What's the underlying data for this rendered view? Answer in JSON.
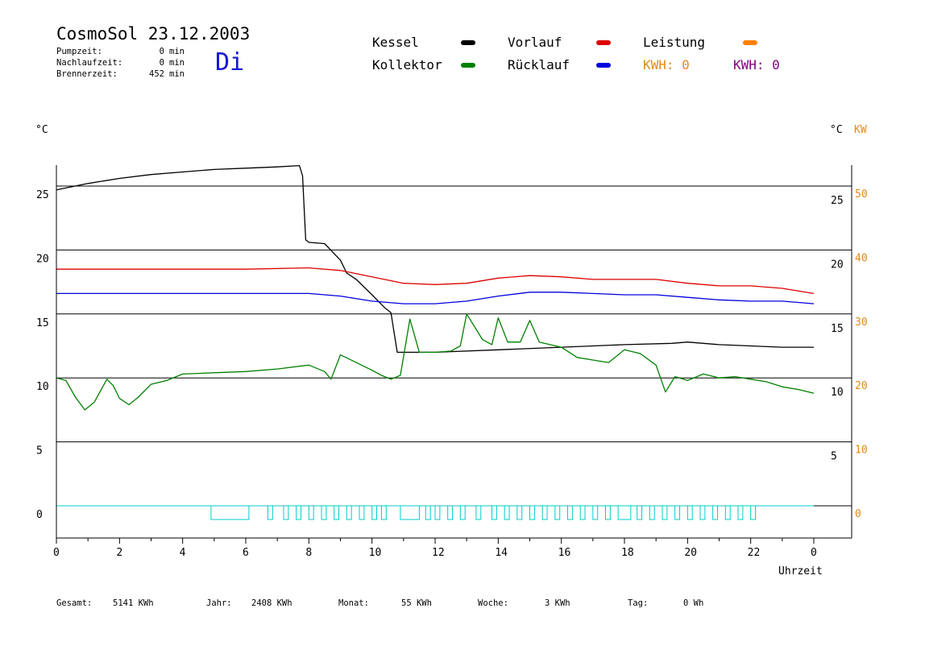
{
  "header": {
    "title": "CosmoSol 23.12.2003",
    "day": "Di",
    "stats": [
      {
        "label": "Pumpzeit:",
        "value": "0",
        "unit": "min"
      },
      {
        "label": "Nachlaufzeit:",
        "value": "0",
        "unit": "min"
      },
      {
        "label": "Brennerzeit:",
        "value": "452",
        "unit": "min"
      }
    ]
  },
  "legend": {
    "kessel": {
      "label": "Kessel",
      "color": "#000000"
    },
    "kollektor": {
      "label": "Kollektor",
      "color": "#008000"
    },
    "vorlauf": {
      "label": "Vorlauf",
      "color": "#dd0000"
    },
    "ruecklauf": {
      "label": "Rücklauf",
      "color": "#0000dd"
    },
    "leistung": {
      "label": "Leistung",
      "color": "#ff8000"
    },
    "kwh1": {
      "text": "KWH: 0",
      "color": "#e08a1a"
    },
    "kwh2": {
      "text": "KWH: 0",
      "color": "#800080"
    }
  },
  "axes_labels": {
    "left_unit": "°C",
    "right_unit_c": "°C",
    "right_unit_kw": "KW",
    "x_label": "Uhrzeit"
  },
  "footer": {
    "gesamt": {
      "label": "Gesamt:",
      "value": "5141 KWh"
    },
    "jahr": {
      "label": "Jahr:",
      "value": "2408 KWh"
    },
    "monat": {
      "label": "Monat:",
      "value": "55 KWh"
    },
    "woche": {
      "label": "Woche:",
      "value": "3 KWh"
    },
    "tag": {
      "label": "Tag:",
      "value": "0 Wh"
    }
  },
  "chart_data": {
    "type": "line",
    "xlabel": "Uhrzeit",
    "xlim": [
      0,
      24
    ],
    "x_ticks": [
      "0",
      "2",
      "4",
      "6",
      "8",
      "10",
      "12",
      "14",
      "16",
      "18",
      "20",
      "22",
      "0"
    ],
    "y_left_ticks": [
      "0",
      "5",
      "10",
      "15",
      "20",
      "25"
    ],
    "y_right_ticks": [
      "5",
      "10",
      "15",
      "20",
      "25"
    ],
    "y_right_kw_ticks": [
      "0",
      "10",
      "20",
      "30",
      "40",
      "50"
    ],
    "ylim": [
      -2.5,
      27.5
    ],
    "grid": true,
    "series": [
      {
        "name": "Kessel",
        "color": "#000000",
        "x": [
          0,
          1,
          2,
          3,
          4,
          5,
          6,
          7,
          7.7,
          7.8,
          7.9,
          8.0,
          8.5,
          9.0,
          9.2,
          9.5,
          10.0,
          10.4,
          10.6,
          10.8,
          12,
          14,
          16,
          18,
          19.5,
          20,
          21,
          22,
          23,
          24
        ],
        "y": [
          24.7,
          25.2,
          25.6,
          25.9,
          26.1,
          26.3,
          26.4,
          26.5,
          26.6,
          25.8,
          20.8,
          20.6,
          20.5,
          19.2,
          18.2,
          17.7,
          16.5,
          15.5,
          15.1,
          12.0,
          12.0,
          12.2,
          12.4,
          12.6,
          12.7,
          12.8,
          12.6,
          12.5,
          12.4,
          12.4
        ]
      },
      {
        "name": "Vorlauf",
        "color": "#dd0000",
        "x": [
          0,
          2,
          4,
          6,
          8,
          9,
          10,
          11,
          12,
          13,
          14,
          15,
          16,
          17,
          18,
          19,
          20,
          21,
          22,
          23,
          24
        ],
        "y": [
          18.5,
          18.5,
          18.5,
          18.5,
          18.6,
          18.4,
          17.9,
          17.4,
          17.3,
          17.4,
          17.8,
          18.0,
          17.9,
          17.7,
          17.7,
          17.7,
          17.4,
          17.2,
          17.2,
          17.0,
          16.6
        ]
      },
      {
        "name": "Rücklauf",
        "color": "#0000dd",
        "x": [
          0,
          2,
          4,
          6,
          8,
          9,
          10,
          11,
          12,
          13,
          14,
          15,
          16,
          17,
          18,
          19,
          20,
          21,
          22,
          23,
          24
        ],
        "y": [
          16.6,
          16.6,
          16.6,
          16.6,
          16.6,
          16.4,
          16.0,
          15.8,
          15.8,
          16.0,
          16.4,
          16.7,
          16.7,
          16.6,
          16.5,
          16.5,
          16.3,
          16.1,
          16.0,
          16.0,
          15.8
        ]
      },
      {
        "name": "Kollektor",
        "color": "#008000",
        "x": [
          0,
          0.3,
          0.6,
          0.9,
          1.2,
          1.6,
          1.8,
          2.0,
          2.3,
          2.6,
          3.0,
          3.5,
          4.0,
          5.0,
          6.0,
          7.0,
          8.0,
          8.5,
          8.7,
          9.0,
          9.5,
          10.0,
          10.3,
          10.6,
          10.9,
          11.2,
          11.5,
          12.0,
          12.5,
          12.8,
          13.0,
          13.5,
          13.8,
          14.0,
          14.3,
          14.7,
          15.0,
          15.3,
          16.0,
          16.5,
          17.0,
          17.5,
          18.0,
          18.5,
          19.0,
          19.3,
          19.6,
          20.0,
          20.5,
          21.0,
          21.5,
          22.0,
          22.5,
          23.0,
          23.5,
          24.0
        ],
        "y": [
          10.0,
          9.8,
          8.5,
          7.5,
          8.1,
          9.9,
          9.4,
          8.4,
          7.9,
          8.5,
          9.5,
          9.8,
          10.3,
          10.4,
          10.5,
          10.7,
          11.0,
          10.5,
          9.9,
          11.8,
          11.2,
          10.6,
          10.2,
          9.9,
          10.2,
          14.6,
          12.0,
          12.0,
          12.1,
          12.5,
          15.0,
          13.0,
          12.6,
          14.7,
          12.8,
          12.8,
          14.5,
          12.8,
          12.4,
          11.6,
          11.4,
          11.2,
          12.2,
          11.9,
          11.0,
          8.9,
          10.1,
          9.8,
          10.3,
          10.0,
          10.1,
          9.9,
          9.7,
          9.3,
          9.1,
          8.8
        ]
      }
    ]
  }
}
